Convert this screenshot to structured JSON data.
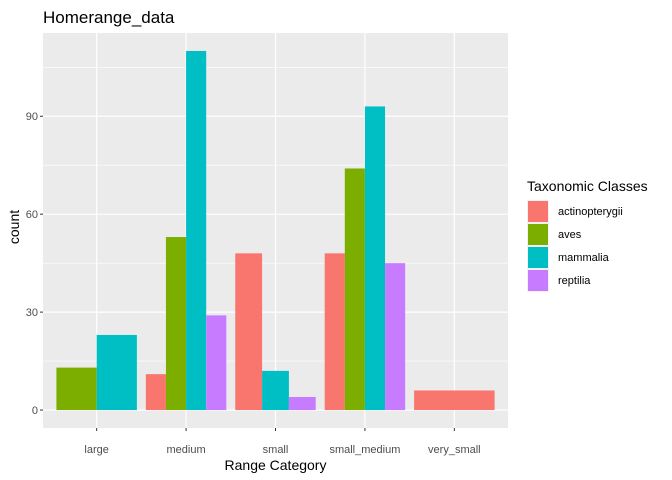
{
  "chart_data": {
    "type": "bar",
    "title": "Homerange_data",
    "xlabel": "Range Category",
    "ylabel": "count",
    "categories": [
      "large",
      "medium",
      "small",
      "small_medium",
      "very_small"
    ],
    "yticks": [
      0,
      30,
      60,
      90
    ],
    "ylim": [
      -5.5,
      115.5
    ],
    "grid": true,
    "legend": {
      "title": "Taxonomic Classes",
      "placement": "right"
    },
    "series": [
      {
        "name": "actinopterygii",
        "color": "#F8766D",
        "values": [
          0,
          11,
          48,
          48,
          6
        ]
      },
      {
        "name": "aves",
        "color": "#7CAE00",
        "values": [
          13,
          53,
          0,
          74,
          0
        ]
      },
      {
        "name": "mammalia",
        "color": "#00BFC4",
        "values": [
          23,
          110,
          12,
          93,
          0
        ]
      },
      {
        "name": "reptilia",
        "color": "#C77CFF",
        "values": [
          0,
          29,
          4,
          45,
          0
        ]
      }
    ],
    "panel_background": "#EBEBEB",
    "grid_color": "#FFFFFF"
  }
}
